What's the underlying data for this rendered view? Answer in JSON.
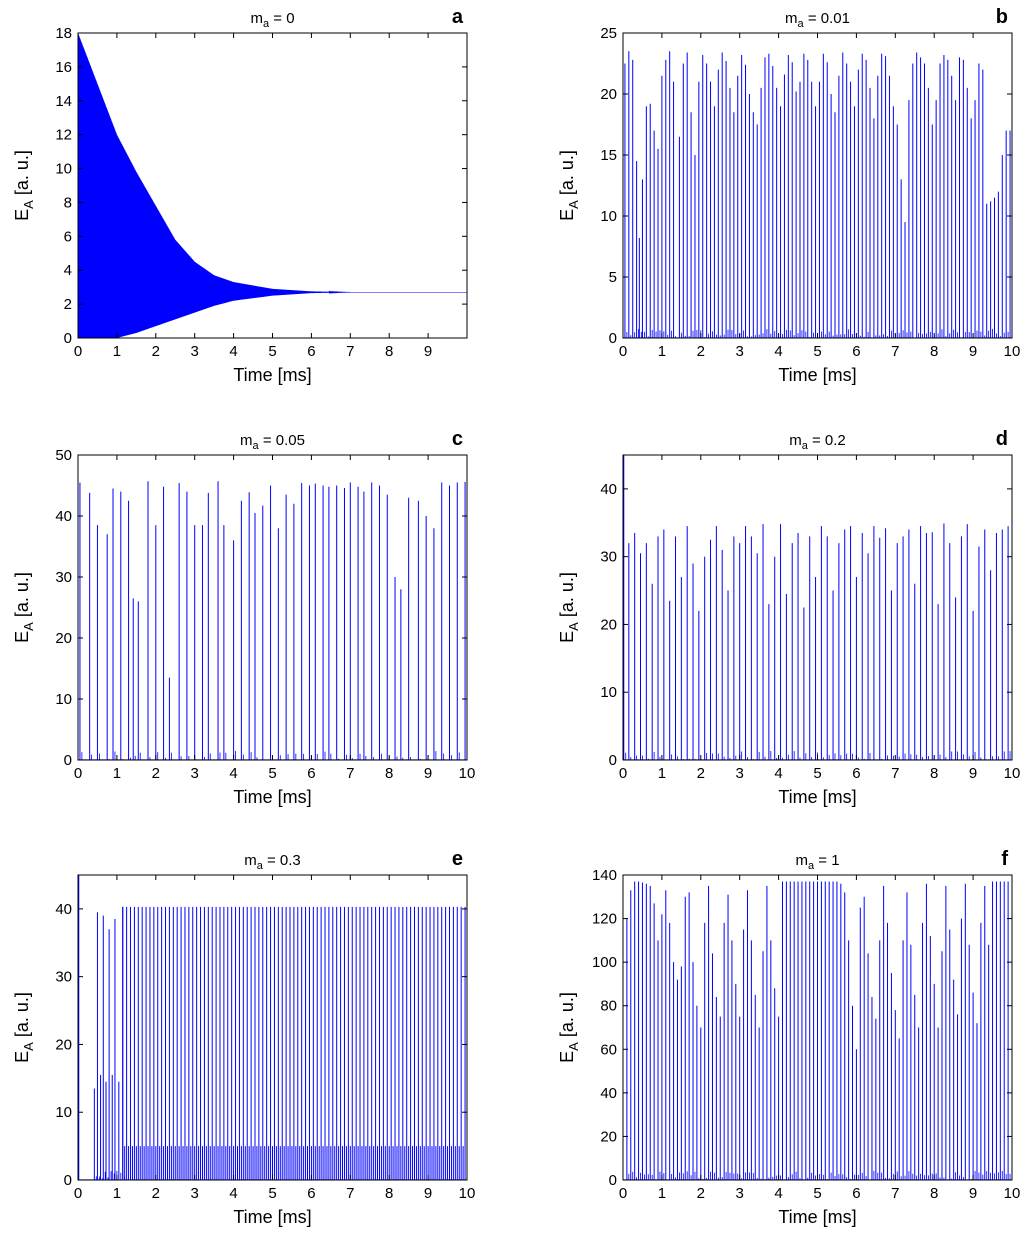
{
  "figure": {
    "panels": [
      {
        "letter": "a",
        "title_base": "m",
        "title_sub": "a",
        "title_rest": " = 0"
      },
      {
        "letter": "b",
        "title_base": "m",
        "title_sub": "a",
        "title_rest": " = 0.01"
      },
      {
        "letter": "c",
        "title_base": "m",
        "title_sub": "a",
        "title_rest": " = 0.05"
      },
      {
        "letter": "d",
        "title_base": "m",
        "title_sub": "a",
        "title_rest": " = 0.2"
      },
      {
        "letter": "e",
        "title_base": "m",
        "title_sub": "a",
        "title_rest": " = 0.3"
      },
      {
        "letter": "f",
        "title_base": "m",
        "title_sub": "a",
        "title_rest": " = 1"
      }
    ]
  },
  "colors": {
    "trace": "#0000ff",
    "axes": "#000000",
    "background": "#ffffff"
  },
  "chart_data": [
    {
      "type": "line",
      "title": "m_a = 0",
      "panel": "a",
      "xlabel": "Time [ms]",
      "ylabel": "E_A [a. u.]",
      "xlim": [
        0,
        10
      ],
      "ylim": [
        0,
        18
      ],
      "xticks": [
        0,
        1,
        2,
        3,
        4,
        5,
        6,
        7,
        8,
        9
      ],
      "yticks": [
        0,
        2,
        4,
        6,
        8,
        10,
        12,
        14,
        16,
        18
      ],
      "grid": false,
      "series": [
        {
          "description_kind": "envelope",
          "x": [
            0,
            0.25,
            0.5,
            1,
            1.5,
            2,
            2.5,
            3,
            3.5,
            4,
            5,
            6,
            7,
            10
          ],
          "upper": [
            18,
            16.5,
            15,
            12,
            9.8,
            7.8,
            5.8,
            4.5,
            3.7,
            3.3,
            2.9,
            2.75,
            2.7,
            2.7
          ],
          "lower": [
            0,
            0,
            0,
            0,
            0.3,
            0.7,
            1.1,
            1.5,
            1.9,
            2.2,
            2.5,
            2.65,
            2.7,
            2.7
          ]
        }
      ]
    },
    {
      "type": "line",
      "title": "m_a = 0.01",
      "panel": "b",
      "xlabel": "Time [ms]",
      "ylabel": "E_A [a. u.]",
      "xlim": [
        0,
        10
      ],
      "ylim": [
        0,
        25
      ],
      "xticks": [
        0,
        1,
        2,
        3,
        4,
        5,
        6,
        7,
        8,
        9,
        10
      ],
      "yticks": [
        0,
        5,
        10,
        15,
        20,
        25
      ],
      "grid": false,
      "series": [
        {
          "description_kind": "spikes",
          "x": [
            0.05,
            0.15,
            0.25,
            0.35,
            0.42,
            0.5,
            0.6,
            0.7,
            0.8,
            0.9,
            1.0,
            1.1,
            1.2,
            1.3,
            1.45,
            1.55,
            1.65,
            1.75,
            1.85,
            1.95,
            2.05,
            2.15,
            2.25,
            2.35,
            2.45,
            2.55,
            2.65,
            2.75,
            2.85,
            2.95,
            3.05,
            3.15,
            3.25,
            3.35,
            3.45,
            3.55,
            3.65,
            3.75,
            3.85,
            3.95,
            4.05,
            4.15,
            4.25,
            4.35,
            4.45,
            4.55,
            4.65,
            4.75,
            4.85,
            4.95,
            5.05,
            5.15,
            5.25,
            5.35,
            5.45,
            5.55,
            5.65,
            5.75,
            5.85,
            5.95,
            6.05,
            6.15,
            6.25,
            6.35,
            6.45,
            6.55,
            6.65,
            6.75,
            6.85,
            6.95,
            7.05,
            7.15,
            7.25,
            7.35,
            7.45,
            7.55,
            7.65,
            7.75,
            7.85,
            7.95,
            8.05,
            8.15,
            8.25,
            8.35,
            8.45,
            8.55,
            8.65,
            8.75,
            8.85,
            8.95,
            9.05,
            9.15,
            9.25,
            9.35,
            9.45,
            9.55,
            9.65,
            9.75,
            9.85,
            9.95
          ],
          "y": [
            22.5,
            23.5,
            22.8,
            14.5,
            8.2,
            13,
            19,
            19.2,
            17,
            15.5,
            21.5,
            22.8,
            23.5,
            21,
            16.5,
            22.5,
            23.4,
            18.5,
            15,
            21,
            23.2,
            22.5,
            21,
            19,
            22,
            23.4,
            22.7,
            20.5,
            18.5,
            21.5,
            23.2,
            22.4,
            20,
            18.5,
            17.5,
            20.5,
            23,
            23.3,
            22.3,
            20.5,
            19,
            21.6,
            23.2,
            22.6,
            20.2,
            21,
            23.3,
            22.8,
            21,
            19,
            21,
            23.3,
            22.6,
            20,
            18.5,
            21.5,
            23.4,
            22.5,
            21,
            19,
            22,
            23.3,
            22.8,
            20.5,
            18,
            21.5,
            23.3,
            23.1,
            21.5,
            19,
            17.5,
            13,
            9.5,
            19.5,
            22.5,
            23.4,
            23,
            22.5,
            20.5,
            17.5,
            19.5,
            22.5,
            23.2,
            22.8,
            21.5,
            19.5,
            23,
            22.8,
            20.5,
            18,
            19.5,
            22.5,
            22,
            11,
            11.2,
            11.5,
            12,
            15,
            17,
            17
          ]
        }
      ]
    },
    {
      "type": "line",
      "title": "m_a = 0.05",
      "panel": "c",
      "xlabel": "Time [ms]",
      "ylabel": "E_A [a. u.]",
      "xlim": [
        0,
        10
      ],
      "ylim": [
        0,
        50
      ],
      "xticks": [
        0,
        1,
        2,
        3,
        4,
        5,
        6,
        7,
        8,
        9,
        10
      ],
      "yticks": [
        0,
        10,
        20,
        30,
        40,
        50
      ],
      "grid": false,
      "series": [
        {
          "description_kind": "spikes",
          "x": [
            0.05,
            0.3,
            0.5,
            0.75,
            0.9,
            1.1,
            1.3,
            1.42,
            1.55,
            1.8,
            2.0,
            2.2,
            2.35,
            2.6,
            2.8,
            3.0,
            3.2,
            3.35,
            3.6,
            3.75,
            4.0,
            4.2,
            4.4,
            4.55,
            4.75,
            4.95,
            5.15,
            5.35,
            5.55,
            5.75,
            5.95,
            6.1,
            6.3,
            6.45,
            6.65,
            6.85,
            7.0,
            7.2,
            7.35,
            7.55,
            7.75,
            7.95,
            8.15,
            8.3,
            8.5,
            8.75,
            8.95,
            9.15,
            9.35,
            9.55,
            9.75,
            9.95
          ],
          "y": [
            45.5,
            43.8,
            38.5,
            37,
            44.5,
            44,
            42.5,
            26.5,
            26,
            45.7,
            38.5,
            44.8,
            13.5,
            45.4,
            44,
            38.5,
            38.5,
            43.8,
            45.7,
            38.5,
            36,
            42.5,
            43.9,
            40.5,
            41.7,
            45,
            38,
            43.5,
            42,
            45.4,
            45,
            45.3,
            45,
            44.8,
            45,
            44.6,
            45.5,
            44.8,
            44,
            45.5,
            45,
            43.5,
            30,
            28,
            43,
            42.5,
            40,
            38,
            45.5,
            45,
            45.5,
            45.6
          ]
        }
      ]
    },
    {
      "type": "line",
      "title": "m_a = 0.2",
      "panel": "d",
      "xlabel": "Time [ms]",
      "ylabel": "E_A [a. u.]",
      "xlim": [
        0,
        10
      ],
      "ylim": [
        0,
        45
      ],
      "xticks": [
        0,
        1,
        2,
        3,
        4,
        5,
        6,
        7,
        8,
        9,
        10
      ],
      "yticks": [
        0,
        10,
        20,
        30,
        40
      ],
      "grid": false,
      "series": [
        {
          "description_kind": "spikes",
          "x": [
            0.02,
            0.15,
            0.3,
            0.45,
            0.6,
            0.75,
            0.9,
            1.05,
            1.2,
            1.35,
            1.5,
            1.65,
            1.8,
            1.95,
            2.1,
            2.25,
            2.4,
            2.55,
            2.7,
            2.85,
            3.0,
            3.15,
            3.3,
            3.45,
            3.6,
            3.75,
            3.9,
            4.05,
            4.2,
            4.35,
            4.5,
            4.65,
            4.8,
            4.95,
            5.1,
            5.25,
            5.4,
            5.55,
            5.7,
            5.85,
            6.0,
            6.15,
            6.3,
            6.45,
            6.6,
            6.75,
            6.9,
            7.05,
            7.2,
            7.35,
            7.5,
            7.65,
            7.8,
            7.95,
            8.1,
            8.25,
            8.4,
            8.55,
            8.7,
            8.85,
            9.0,
            9.15,
            9.3,
            9.45,
            9.6,
            9.75,
            9.9
          ],
          "y": [
            45,
            32,
            33.5,
            30.5,
            32,
            26,
            33,
            34,
            23.5,
            33,
            27,
            34.5,
            29,
            22,
            30,
            32.5,
            34.5,
            31,
            25,
            33,
            32,
            34.5,
            33,
            30.5,
            34.8,
            23,
            30,
            34.8,
            24.5,
            32,
            33.5,
            22.5,
            33,
            27,
            34.5,
            33,
            25,
            32,
            34,
            34.5,
            27,
            33.5,
            30.5,
            34.5,
            32.8,
            34.2,
            25,
            32,
            33,
            34,
            26,
            34.5,
            33.5,
            33.6,
            23,
            34.9,
            32,
            24,
            33,
            34.8,
            22,
            31.5,
            34,
            28,
            33.5,
            34,
            34.5
          ]
        }
      ]
    },
    {
      "type": "line",
      "title": "m_a = 0.3",
      "panel": "e",
      "xlabel": "Time [ms]",
      "ylabel": "E_A [a. u.]",
      "xlim": [
        0,
        10
      ],
      "ylim": [
        0,
        45
      ],
      "xticks": [
        0,
        1,
        2,
        3,
        4,
        5,
        6,
        7,
        8,
        9,
        10
      ],
      "yticks": [
        0,
        10,
        20,
        30,
        40
      ],
      "grid": false,
      "series": [
        {
          "description_kind": "spikes",
          "x": [
            0.02,
            0.42,
            0.5,
            0.58,
            0.65,
            0.72,
            0.8,
            0.88,
            0.95,
            1.05,
            1.15
          ],
          "y": [
            45,
            13.5,
            39.5,
            15.5,
            39,
            14.5,
            37,
            15.5,
            38.5,
            14.5,
            40.3
          ],
          "steady_state": {
            "from": 1.15,
            "to": 10,
            "period": 0.1,
            "high": 40.3,
            "low": 5
          }
        }
      ]
    },
    {
      "type": "line",
      "title": "m_a = 1",
      "panel": "f",
      "xlabel": "Time [ms]",
      "ylabel": "E_A [a. u.]",
      "xlim": [
        0,
        10
      ],
      "ylim": [
        0,
        140
      ],
      "xticks": [
        0,
        1,
        2,
        3,
        4,
        5,
        6,
        7,
        8,
        9,
        10
      ],
      "yticks": [
        0,
        20,
        40,
        60,
        80,
        100,
        120,
        140
      ],
      "grid": false,
      "series": [
        {
          "description_kind": "spikes",
          "x": [
            0.1,
            0.2,
            0.3,
            0.4,
            0.5,
            0.6,
            0.7,
            0.8,
            0.9,
            1.0,
            1.1,
            1.2,
            1.3,
            1.4,
            1.5,
            1.6,
            1.7,
            1.8,
            1.9,
            2.0,
            2.1,
            2.2,
            2.3,
            2.4,
            2.5,
            2.6,
            2.7,
            2.8,
            2.9,
            3.0,
            3.1,
            3.2,
            3.3,
            3.4,
            3.5,
            3.6,
            3.7,
            3.8,
            3.9,
            4.0,
            4.1,
            4.2,
            4.3,
            4.4,
            4.5,
            4.6,
            4.7,
            4.8,
            4.9,
            5.0,
            5.1,
            5.2,
            5.3,
            5.4,
            5.5,
            5.6,
            5.7,
            5.8,
            5.9,
            6.0,
            6.1,
            6.2,
            6.3,
            6.4,
            6.5,
            6.6,
            6.7,
            6.8,
            6.9,
            7.0,
            7.1,
            7.2,
            7.3,
            7.4,
            7.5,
            7.6,
            7.7,
            7.8,
            7.9,
            8.0,
            8.1,
            8.2,
            8.3,
            8.4,
            8.5,
            8.6,
            8.7,
            8.8,
            8.9,
            9.0,
            9.1,
            9.2,
            9.3,
            9.4,
            9.5,
            9.6,
            9.7,
            9.8,
            9.9
          ],
          "y": [
            120,
            133,
            137,
            137,
            136.5,
            136,
            135,
            127,
            110,
            122,
            133,
            118,
            100,
            92,
            98,
            130,
            132,
            100,
            80,
            70,
            118,
            135,
            104,
            84,
            75,
            118,
            131,
            110,
            90,
            75,
            115,
            133,
            110,
            85,
            70,
            105,
            135,
            110,
            88,
            75,
            137,
            137,
            137,
            137,
            137,
            137,
            137,
            137,
            137,
            137,
            137,
            137,
            137,
            137,
            137,
            136,
            132,
            110,
            80,
            60,
            125,
            130,
            104,
            84,
            74,
            110,
            135,
            118,
            95,
            78,
            65,
            110,
            132,
            108,
            85,
            70,
            118,
            136,
            112,
            90,
            70,
            105,
            135,
            115,
            92,
            76,
            120,
            136,
            108,
            86,
            72,
            118,
            135,
            108,
            137,
            137,
            137,
            137,
            137
          ]
        }
      ]
    }
  ]
}
